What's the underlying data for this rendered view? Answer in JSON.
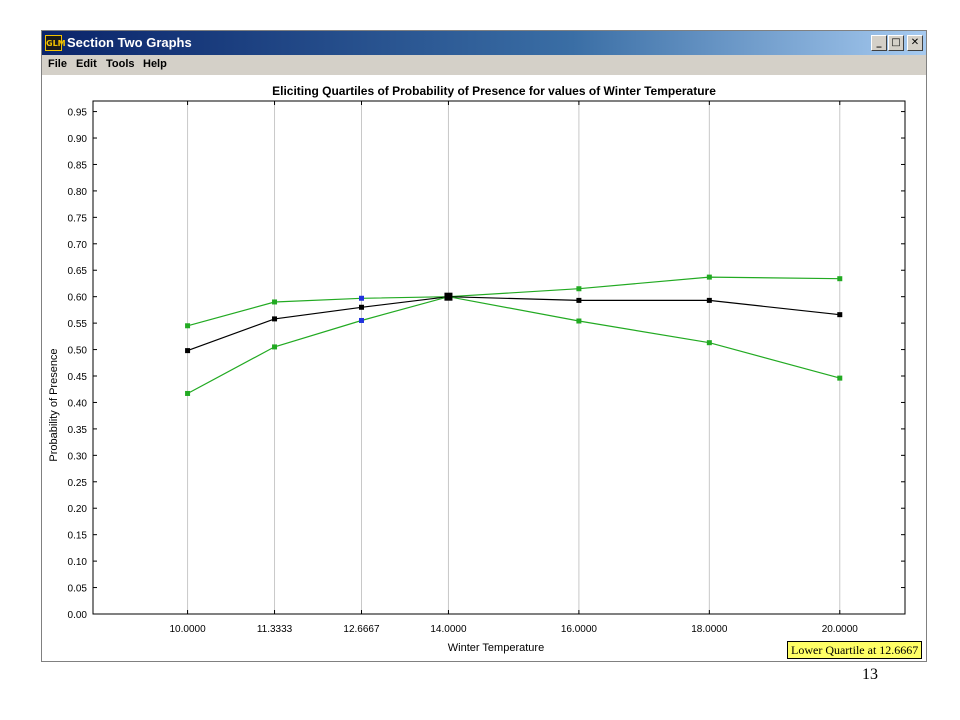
{
  "window": {
    "logo_text": "GLM",
    "title": "Section Two Graphs",
    "controls": {
      "minimize": "_",
      "maximize": "□",
      "close": "✕"
    }
  },
  "menu": [
    {
      "label": "File"
    },
    {
      "label": "Edit"
    },
    {
      "label": "Tools"
    },
    {
      "label": "Help"
    }
  ],
  "status": {
    "text": "Lower Quartile at 12.6667"
  },
  "page_number": "13",
  "chart_data": {
    "type": "line",
    "title": "Eliciting Quartiles of Probability of Presence for values of Winter Temperature",
    "xlabel": "Winter Temperature",
    "ylabel": "Probability of Presence",
    "x_ticks": [
      10.0,
      11.3333,
      12.6667,
      14.0,
      16.0,
      18.0,
      20.0
    ],
    "x_tick_labels": [
      "10.0000",
      "11.3333",
      "12.6667",
      "14.0000",
      "16.0000",
      "18.0000",
      "20.0000"
    ],
    "xlim": [
      8.55,
      21.0
    ],
    "ylim": [
      0.0,
      0.97
    ],
    "y_ticks": [
      0.0,
      0.05,
      0.1,
      0.15,
      0.2,
      0.25,
      0.3,
      0.35,
      0.4,
      0.45,
      0.5,
      0.55,
      0.6,
      0.65,
      0.7,
      0.75,
      0.8,
      0.85,
      0.9,
      0.95
    ],
    "y_tick_labels": [
      "0.00",
      "0.05",
      "0.10",
      "0.15",
      "0.20",
      "0.25",
      "0.30",
      "0.35",
      "0.40",
      "0.45",
      "0.50",
      "0.55",
      "0.60",
      "0.65",
      "0.70",
      "0.75",
      "0.80",
      "0.85",
      "0.90",
      "0.95"
    ],
    "grid": true,
    "series": [
      {
        "color": "#22aa22",
        "x": [
          10.0,
          11.3333,
          12.6667,
          14.0,
          16.0,
          18.0,
          20.0
        ],
        "y": [
          0.545,
          0.59,
          0.597,
          0.6,
          0.615,
          0.637,
          0.634
        ],
        "marker_colors": [
          "#22aa22",
          "#22aa22",
          "#2233dd",
          "#22aa22",
          "#22aa22",
          "#22aa22",
          "#22aa22"
        ]
      },
      {
        "color": "#000000",
        "x": [
          10.0,
          11.3333,
          12.6667,
          14.0,
          16.0,
          18.0,
          20.0
        ],
        "y": [
          0.498,
          0.558,
          0.58,
          0.6,
          0.593,
          0.593,
          0.566
        ],
        "marker_colors": [
          "#000000",
          "#000000",
          "#000000",
          "#000000",
          "#000000",
          "#000000",
          "#000000"
        ]
      },
      {
        "color": "#22aa22",
        "x": [
          10.0,
          11.3333,
          12.6667,
          14.0,
          16.0,
          18.0,
          20.0
        ],
        "y": [
          0.417,
          0.505,
          0.555,
          0.6,
          0.554,
          0.513,
          0.446
        ],
        "marker_colors": [
          "#22aa22",
          "#22aa22",
          "#2233dd",
          "#22aa22",
          "#22aa22",
          "#22aa22",
          "#22aa22"
        ]
      }
    ],
    "highlight": {
      "x": 14.0,
      "y": 0.6,
      "color": "#000000"
    }
  }
}
